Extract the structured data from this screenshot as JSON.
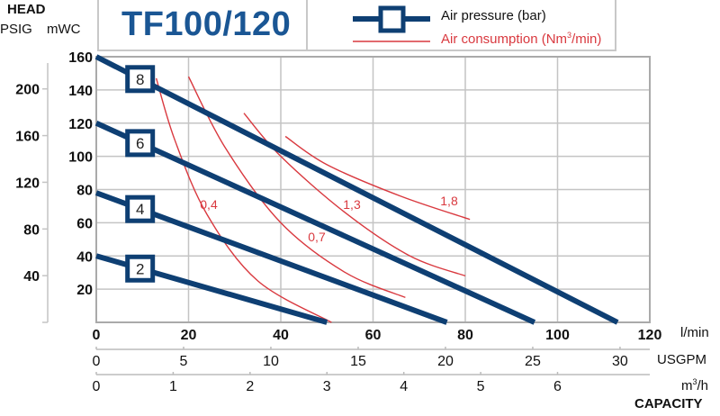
{
  "header": {
    "head_label": "HEAD",
    "psig_label": "PSIG",
    "mwc_label": "mWC",
    "title": "TF100/120"
  },
  "legend": {
    "air_pressure": "Air pressure (bar)",
    "air_consumption_prefix": "Air consumption (Nm",
    "air_consumption_sup": "3",
    "air_consumption_suffix": "/min)"
  },
  "axes": {
    "lpm_unit": "l/min",
    "usgpm_unit": "USGPM",
    "m3h_unit_base": "m",
    "m3h_unit_sup": "3",
    "m3h_unit_suffix": "/h",
    "capacity_label": "CAPACITY"
  },
  "colors": {
    "pressure_line": "#0e3f73",
    "consumption_line": "#d9393f",
    "title": "#1a5694",
    "grid": "#c4c4c4"
  },
  "chart_data": {
    "type": "line",
    "title": "TF100/120",
    "xlabel": "CAPACITY",
    "ylabel": "HEAD",
    "x_axes": [
      {
        "unit": "l/min",
        "range": [
          0,
          120
        ],
        "ticks": [
          0,
          20,
          40,
          60,
          80,
          100,
          120
        ]
      },
      {
        "unit": "USGPM",
        "ticks": [
          0,
          5,
          10,
          15,
          20,
          25,
          30
        ]
      },
      {
        "unit": "m3/h",
        "ticks": [
          0,
          1,
          2,
          3,
          4,
          5,
          6
        ]
      }
    ],
    "y_axes": [
      {
        "unit": "mWC",
        "range": [
          0,
          160
        ],
        "ticks": [
          20,
          40,
          60,
          80,
          100,
          120,
          140,
          160
        ]
      },
      {
        "unit": "PSIG",
        "ticks": [
          40,
          80,
          120,
          160,
          200
        ]
      }
    ],
    "grid": true,
    "legend_position": "top",
    "series": [
      {
        "name": "Air pressure 8 bar",
        "label": "8",
        "kind": "pressure",
        "points": [
          [
            0,
            160
          ],
          [
            113,
            0
          ]
        ]
      },
      {
        "name": "Air pressure 6 bar",
        "label": "6",
        "kind": "pressure",
        "points": [
          [
            0,
            120
          ],
          [
            95,
            0
          ]
        ]
      },
      {
        "name": "Air pressure 4 bar",
        "label": "4",
        "kind": "pressure",
        "points": [
          [
            0,
            78
          ],
          [
            76,
            0
          ]
        ]
      },
      {
        "name": "Air pressure 2 bar",
        "label": "2",
        "kind": "pressure",
        "points": [
          [
            0,
            40
          ],
          [
            50,
            0
          ]
        ]
      },
      {
        "name": "Air consumption 0.4 Nm3/min",
        "label": "0,4",
        "kind": "consumption",
        "points": [
          [
            13,
            147
          ],
          [
            17,
            110
          ],
          [
            24,
            65
          ],
          [
            35,
            25
          ],
          [
            51,
            0
          ]
        ]
      },
      {
        "name": "Air consumption 0.7 Nm3/min",
        "label": "0,7",
        "kind": "consumption",
        "points": [
          [
            20,
            148
          ],
          [
            28,
            105
          ],
          [
            40,
            60
          ],
          [
            54,
            30
          ],
          [
            67,
            15
          ]
        ]
      },
      {
        "name": "Air consumption 1.3 Nm3/min",
        "label": "1,3",
        "kind": "consumption",
        "points": [
          [
            32,
            126
          ],
          [
            40,
            100
          ],
          [
            54,
            66
          ],
          [
            68,
            40
          ],
          [
            80,
            28
          ]
        ]
      },
      {
        "name": "Air consumption 1.8 Nm3/min",
        "label": "1,8",
        "kind": "consumption",
        "points": [
          [
            41,
            112
          ],
          [
            50,
            95
          ],
          [
            66,
            76
          ],
          [
            81,
            62
          ]
        ]
      }
    ]
  }
}
